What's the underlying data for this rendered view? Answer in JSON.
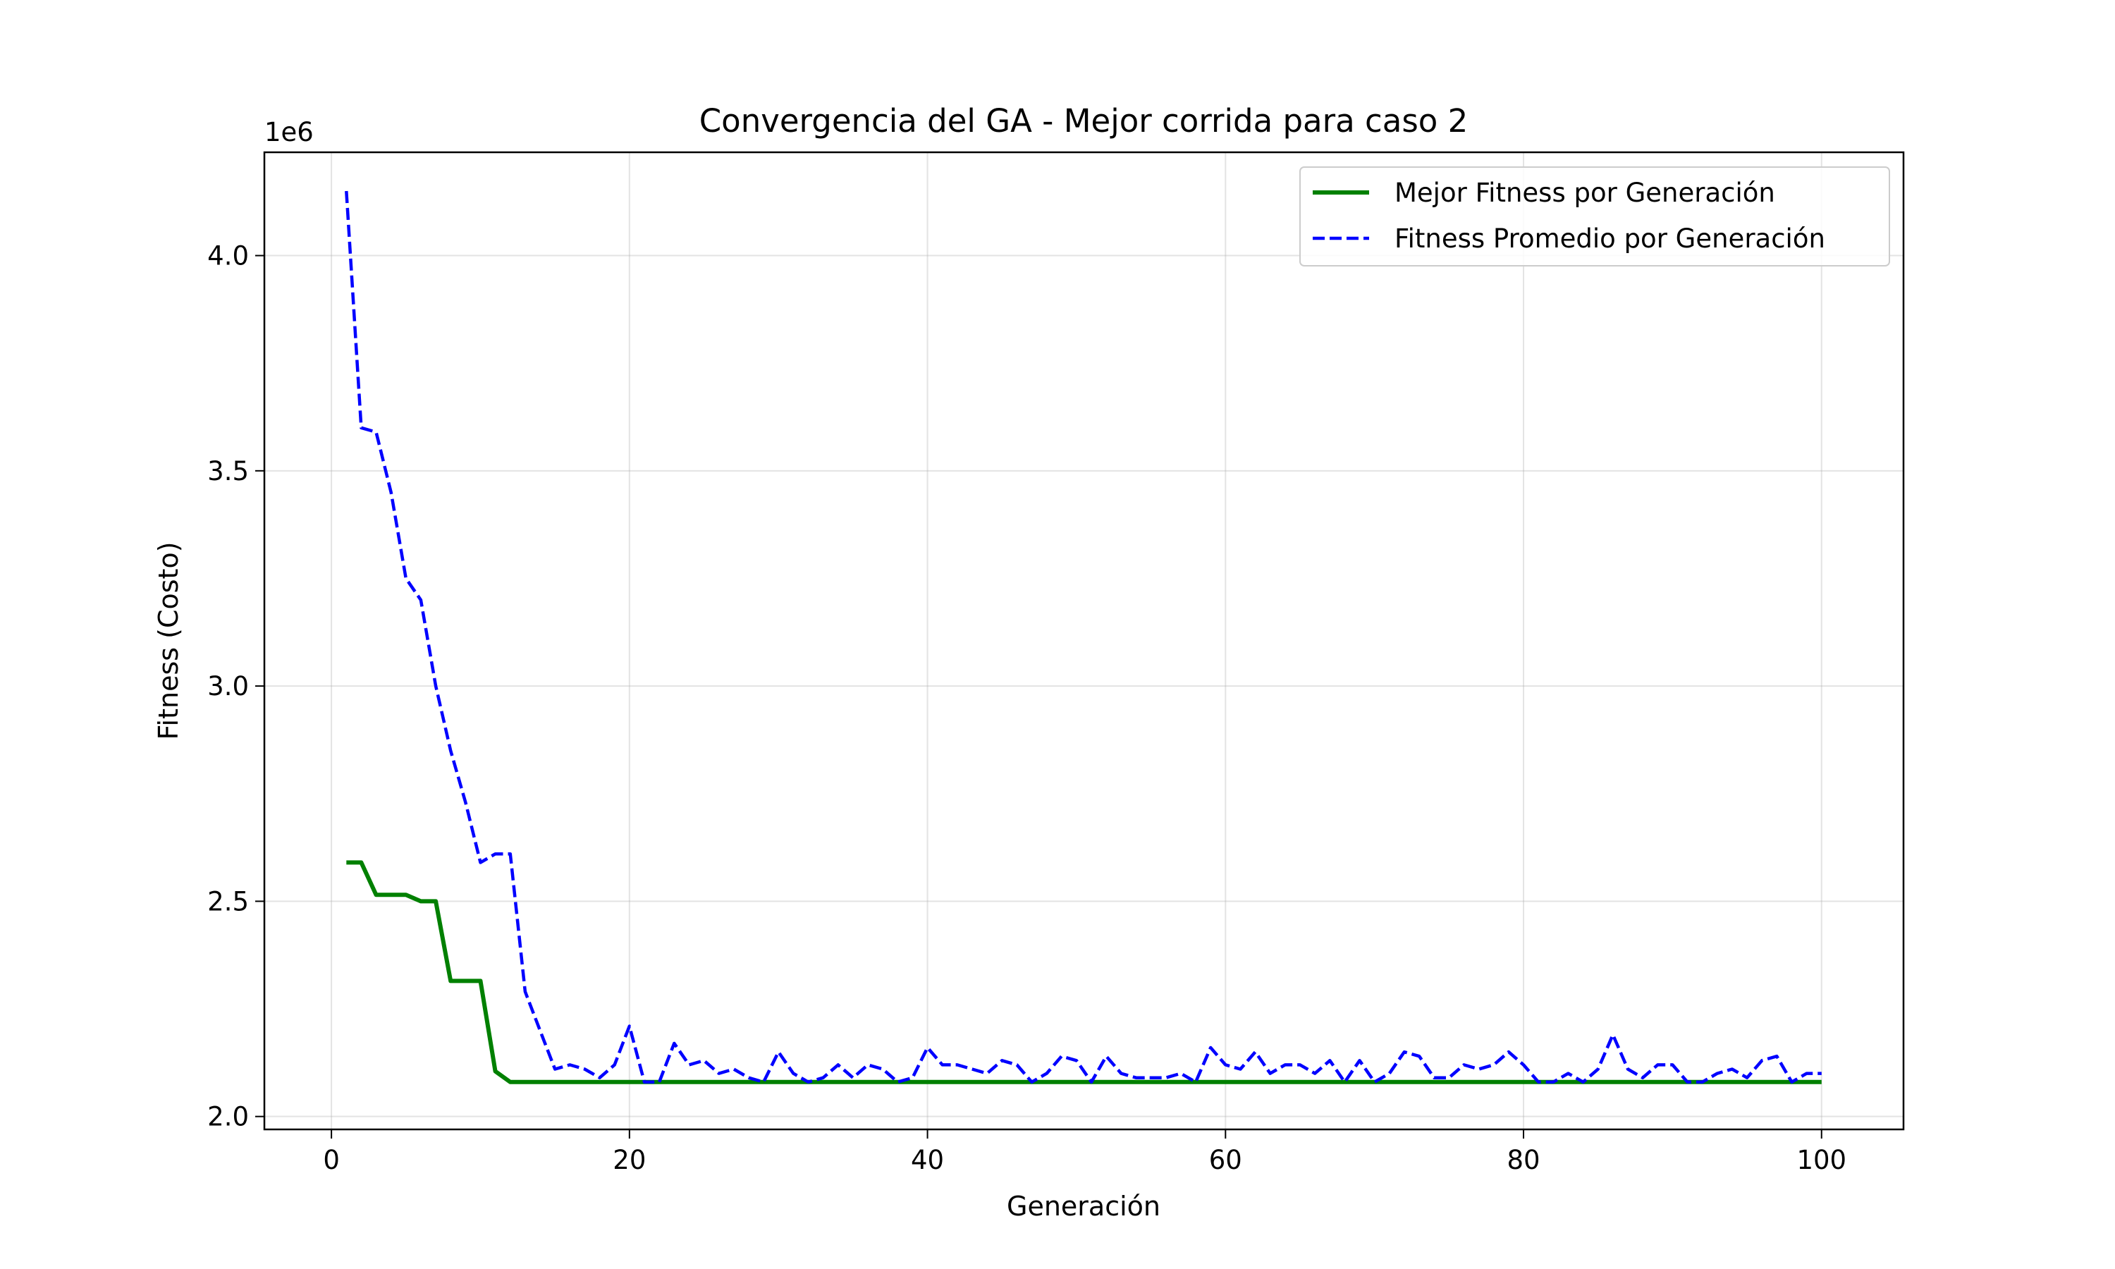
{
  "chart_data": {
    "type": "line",
    "title": "Convergencia del GA - Mejor corrida para caso 2",
    "xlabel": "Generación",
    "ylabel": "Fitness (Costo)",
    "offset_label": "1e6",
    "xlim": [
      -4.5,
      105.5
    ],
    "ylim": [
      1.97,
      4.24
    ],
    "xticks": [
      0,
      20,
      40,
      60,
      80,
      100
    ],
    "xtick_labels": [
      "0",
      "20",
      "40",
      "60",
      "80",
      "100"
    ],
    "yticks": [
      2.0,
      2.5,
      3.0,
      3.5,
      4.0
    ],
    "ytick_labels": [
      "2.0",
      "2.5",
      "3.0",
      "3.5",
      "4.0"
    ],
    "y_unit_multiplier": 1000000,
    "grid": true,
    "legend_position": "top-right",
    "x": [
      1,
      2,
      3,
      4,
      5,
      6,
      7,
      8,
      9,
      10,
      11,
      12,
      13,
      14,
      15,
      16,
      17,
      18,
      19,
      20,
      21,
      22,
      23,
      24,
      25,
      26,
      27,
      28,
      29,
      30,
      31,
      32,
      33,
      34,
      35,
      36,
      37,
      38,
      39,
      40,
      41,
      42,
      43,
      44,
      45,
      46,
      47,
      48,
      49,
      50,
      51,
      52,
      53,
      54,
      55,
      56,
      57,
      58,
      59,
      60,
      61,
      62,
      63,
      64,
      65,
      66,
      67,
      68,
      69,
      70,
      71,
      72,
      73,
      74,
      75,
      76,
      77,
      78,
      79,
      80,
      81,
      82,
      83,
      84,
      85,
      86,
      87,
      88,
      89,
      90,
      91,
      92,
      93,
      94,
      95,
      96,
      97,
      98,
      99,
      100
    ],
    "series": [
      {
        "name": "Mejor Fitness por Generación",
        "color": "#008000",
        "style": "solid",
        "values": [
          2.59,
          2.59,
          2.515,
          2.515,
          2.515,
          2.5,
          2.5,
          2.315,
          2.315,
          2.315,
          2.105,
          2.08,
          2.08,
          2.08,
          2.08,
          2.08,
          2.08,
          2.08,
          2.08,
          2.08,
          2.08,
          2.08,
          2.08,
          2.08,
          2.08,
          2.08,
          2.08,
          2.08,
          2.08,
          2.08,
          2.08,
          2.08,
          2.08,
          2.08,
          2.08,
          2.08,
          2.08,
          2.08,
          2.08,
          2.08,
          2.08,
          2.08,
          2.08,
          2.08,
          2.08,
          2.08,
          2.08,
          2.08,
          2.08,
          2.08,
          2.08,
          2.08,
          2.08,
          2.08,
          2.08,
          2.08,
          2.08,
          2.08,
          2.08,
          2.08,
          2.08,
          2.08,
          2.08,
          2.08,
          2.08,
          2.08,
          2.08,
          2.08,
          2.08,
          2.08,
          2.08,
          2.08,
          2.08,
          2.08,
          2.08,
          2.08,
          2.08,
          2.08,
          2.08,
          2.08,
          2.08,
          2.08,
          2.08,
          2.08,
          2.08,
          2.08,
          2.08,
          2.08,
          2.08,
          2.08,
          2.08,
          2.08,
          2.08,
          2.08,
          2.08,
          2.08,
          2.08,
          2.08,
          2.08,
          2.08
        ]
      },
      {
        "name": "Fitness Promedio por Generación",
        "color": "#0000ff",
        "style": "dashed",
        "values": [
          4.15,
          3.6,
          3.59,
          3.45,
          3.25,
          3.2,
          3.0,
          2.85,
          2.73,
          2.59,
          2.61,
          2.61,
          2.29,
          2.2,
          2.11,
          2.12,
          2.11,
          2.09,
          2.12,
          2.21,
          2.08,
          2.08,
          2.17,
          2.12,
          2.13,
          2.1,
          2.11,
          2.09,
          2.08,
          2.15,
          2.1,
          2.08,
          2.09,
          2.12,
          2.09,
          2.12,
          2.11,
          2.08,
          2.09,
          2.16,
          2.12,
          2.12,
          2.11,
          2.1,
          2.13,
          2.12,
          2.08,
          2.1,
          2.14,
          2.13,
          2.08,
          2.14,
          2.1,
          2.09,
          2.09,
          2.09,
          2.1,
          2.08,
          2.16,
          2.12,
          2.11,
          2.15,
          2.1,
          2.12,
          2.12,
          2.1,
          2.13,
          2.08,
          2.13,
          2.08,
          2.1,
          2.15,
          2.14,
          2.09,
          2.09,
          2.12,
          2.11,
          2.12,
          2.15,
          2.12,
          2.08,
          2.08,
          2.1,
          2.08,
          2.11,
          2.19,
          2.11,
          2.09,
          2.12,
          2.12,
          2.08,
          2.08,
          2.1,
          2.11,
          2.09,
          2.13,
          2.14,
          2.08,
          2.1,
          2.1
        ]
      }
    ]
  }
}
